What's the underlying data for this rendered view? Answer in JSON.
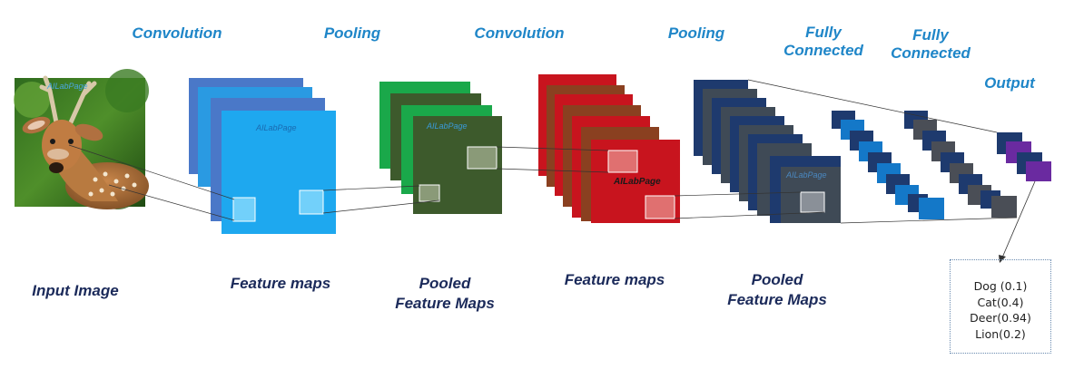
{
  "stages": {
    "conv1": "Convolution",
    "pool1": "Pooling",
    "conv2": "Convolution",
    "pool2": "Pooling",
    "fc1": "Fully Connected",
    "fc2": "Fully Connected",
    "output": "Output"
  },
  "bottom_labels": {
    "input": "Input Image",
    "feature_maps_1": "Feature maps",
    "pooled_1": "Pooled Feature Maps",
    "feature_maps_2": "Feature maps",
    "pooled_2": "Pooled Feature Maps"
  },
  "watermark": "AILabPage",
  "output_classes": [
    "Dog (0.1)",
    "Cat(0.4)",
    "Deer(0.94)",
    "Lion(0.2)"
  ],
  "colors": {
    "label_blue": "#1f86c8",
    "label_navy": "#1b2a5a",
    "conv1_maps": "#1ea8ef",
    "pool1_maps": "#3d5a2c",
    "conv2_maps": "#c8141e",
    "pool2_maps": "#3f4a56",
    "fc_blue": "#1478c8",
    "output_purple": "#6a2aa0"
  }
}
